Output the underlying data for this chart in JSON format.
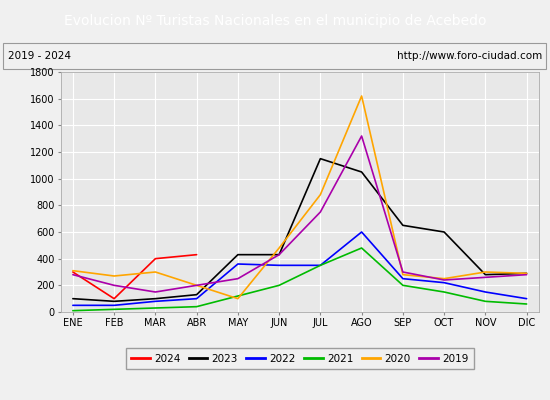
{
  "title": "Evolucion Nº Turistas Nacionales en el municipio de Acebedo",
  "subtitle_left": "2019 - 2024",
  "subtitle_right": "http://www.foro-ciudad.com",
  "title_bg_color": "#4472c4",
  "title_text_color": "#ffffff",
  "months": [
    "ENE",
    "FEB",
    "MAR",
    "ABR",
    "MAY",
    "JUN",
    "JUL",
    "AGO",
    "SEP",
    "OCT",
    "NOV",
    "DIC"
  ],
  "ylim": [
    0,
    1800
  ],
  "yticks": [
    0,
    200,
    400,
    600,
    800,
    1000,
    1200,
    1400,
    1600,
    1800
  ],
  "series": {
    "2024": {
      "color": "#ff0000",
      "data": [
        300,
        100,
        400,
        430,
        null,
        null,
        null,
        null,
        null,
        null,
        null,
        null
      ]
    },
    "2023": {
      "color": "#000000",
      "data": [
        100,
        80,
        100,
        130,
        430,
        430,
        1150,
        1050,
        650,
        600,
        280,
        290
      ]
    },
    "2022": {
      "color": "#0000ff",
      "data": [
        50,
        50,
        80,
        100,
        360,
        350,
        350,
        600,
        250,
        220,
        150,
        100
      ]
    },
    "2021": {
      "color": "#00bb00",
      "data": [
        10,
        20,
        30,
        40,
        120,
        200,
        350,
        480,
        200,
        150,
        80,
        60
      ]
    },
    "2020": {
      "color": "#ffa500",
      "data": [
        310,
        270,
        300,
        200,
        100,
        480,
        880,
        1620,
        280,
        250,
        300,
        290
      ]
    },
    "2019": {
      "color": "#aa00aa",
      "data": [
        280,
        200,
        150,
        200,
        250,
        430,
        750,
        1320,
        300,
        240,
        260,
        280
      ]
    }
  },
  "legend_order": [
    "2024",
    "2023",
    "2022",
    "2021",
    "2020",
    "2019"
  ],
  "background_color": "#f0f0f0",
  "plot_bg_color": "#e8e8e8",
  "grid_color": "#ffffff",
  "title_fontsize": 10,
  "subtitle_fontsize": 7.5,
  "tick_fontsize": 7,
  "legend_fontsize": 7.5
}
